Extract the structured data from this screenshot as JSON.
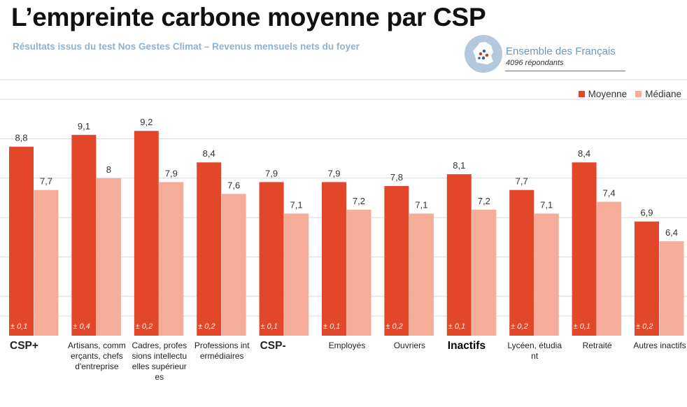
{
  "title": "L’empreinte carbone moyenne par CSP",
  "subtitle": "Résultats issus du test Nos Gestes Climat – Revenus mensuels nets du foyer",
  "badge": {
    "title": "Ensemble des Français",
    "subtitle": "4096 répondants",
    "icon": "france-map-icon"
  },
  "colors": {
    "moyenne": "#e2472a",
    "mediane": "#f5ac98",
    "grid": "#d9d9d9"
  },
  "chart_data": {
    "type": "bar",
    "categories": [
      "CSP+",
      "Artisans, commerçants, chefs d'entreprise",
      "Cadres, professions intellectuelles supérieures",
      "Professions intermédiaires",
      "CSP-",
      "Employés",
      "Ouvriers",
      "Inactifs",
      "Lycéen, étudiant",
      "Retraité",
      "Autres inactifs"
    ],
    "category_emphasis": [
      true,
      false,
      false,
      false,
      true,
      false,
      false,
      true,
      false,
      false,
      false
    ],
    "series": [
      {
        "name": "Moyenne",
        "values": [
          8.8,
          9.1,
          9.2,
          8.4,
          7.9,
          7.9,
          7.8,
          8.1,
          7.7,
          8.4,
          6.9
        ],
        "value_labels": [
          "8,8",
          "9,1",
          "9,2",
          "8,4",
          "7,9",
          "7,9",
          "7,8",
          "8,1",
          "7,7",
          "8,4",
          "6,9"
        ]
      },
      {
        "name": "Médiane",
        "values": [
          7.7,
          8,
          7.9,
          7.6,
          7.1,
          7.2,
          7.1,
          7.2,
          7.1,
          7.4,
          6.4
        ],
        "value_labels": [
          "7,7",
          "8",
          "7,9",
          "7,6",
          "7,1",
          "7,2",
          "7,1",
          "7,2",
          "7,1",
          "7,4",
          "6,4"
        ]
      }
    ],
    "error_labels": [
      "± 0,1",
      "± 0,4",
      "± 0,2",
      "± 0,2",
      "± 0,1",
      "± 0,1",
      "± 0,2",
      "± 0,1",
      "± 0,2",
      "± 0,1",
      "± 0,2"
    ],
    "ylim": [
      4.0,
      10.5
    ],
    "grid": true,
    "legend": "top-right"
  }
}
